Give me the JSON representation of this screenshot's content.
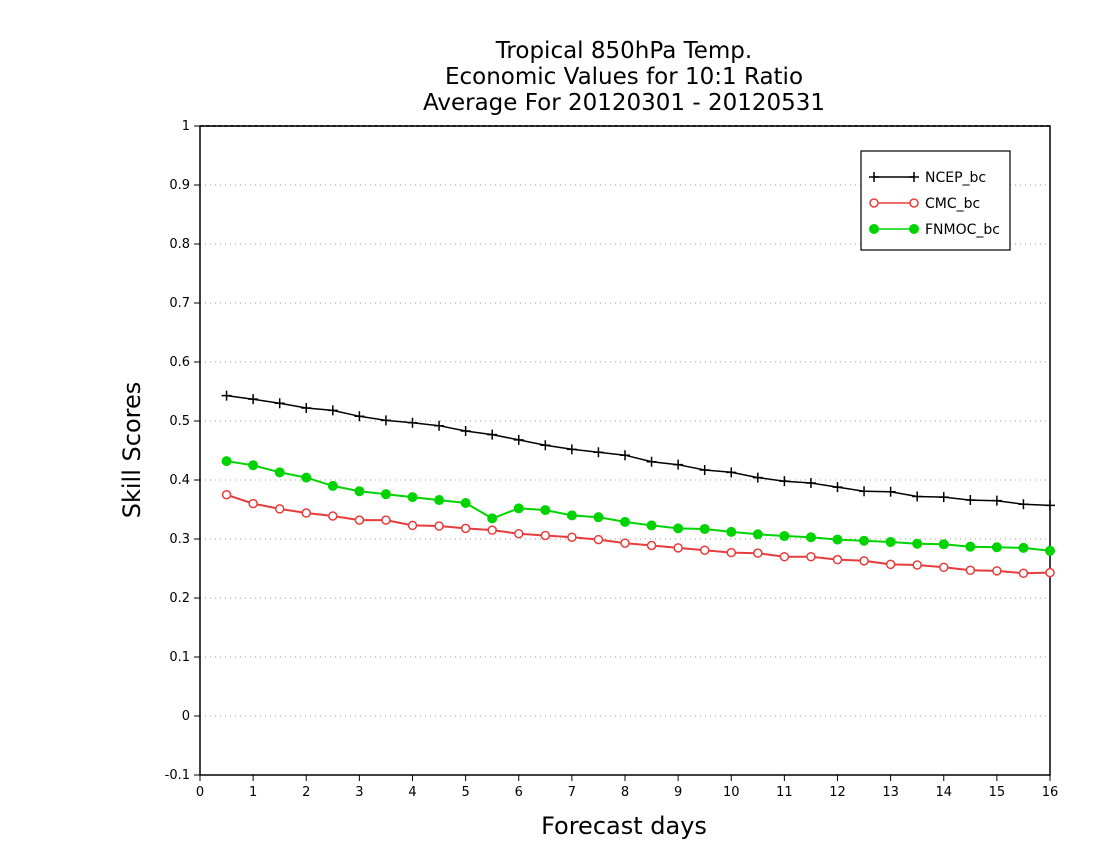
{
  "colors": {
    "background": "#ffffff",
    "grid": "#9a9a9a",
    "series": [
      "#000000",
      "#e83c3c",
      "#00d400"
    ]
  },
  "chart_data": {
    "type": "line",
    "title": [
      "Tropical 850hPa Temp.",
      "Economic Values for 10:1 Ratio",
      "Average For 20120301 - 20120531"
    ],
    "xlabel": "Forecast days",
    "ylabel": "Skill Scores",
    "xlim": [
      0,
      16
    ],
    "ylim": [
      -0.1,
      1
    ],
    "xticks": [
      0,
      1,
      2,
      3,
      4,
      5,
      6,
      7,
      8,
      9,
      10,
      11,
      12,
      13,
      14,
      15,
      16
    ],
    "yticks": [
      -0.1,
      0,
      0.1,
      0.2,
      0.3,
      0.4,
      0.5,
      0.6,
      0.7,
      0.8,
      0.9,
      1
    ],
    "ytick_labels": [
      "-0.1",
      "0",
      "0.1",
      "0.2",
      "0.3",
      "0.4",
      "0.5",
      "0.6",
      "0.7",
      "0.8",
      "0.9",
      "1"
    ],
    "grid": "horizontal-dotted",
    "legend_position": "top-right",
    "x": [
      0.5,
      1,
      1.5,
      2,
      2.5,
      3,
      3.5,
      4,
      4.5,
      5,
      5.5,
      6,
      6.5,
      7,
      7.5,
      8,
      8.5,
      9,
      9.5,
      10,
      10.5,
      11,
      11.5,
      12,
      12.5,
      13,
      13.5,
      14,
      14.5,
      15,
      15.5,
      16
    ],
    "series": [
      {
        "name": "NCEP_bc",
        "marker": "plus",
        "values": [
          0.543,
          0.537,
          0.53,
          0.522,
          0.518,
          0.508,
          0.501,
          0.497,
          0.492,
          0.483,
          0.477,
          0.468,
          0.459,
          0.452,
          0.447,
          0.442,
          0.431,
          0.426,
          0.417,
          0.413,
          0.404,
          0.398,
          0.395,
          0.388,
          0.381,
          0.38,
          0.372,
          0.371,
          0.366,
          0.365,
          0.359,
          0.357
        ]
      },
      {
        "name": "CMC_bc",
        "marker": "open-circle",
        "values": [
          0.375,
          0.36,
          0.351,
          0.344,
          0.339,
          0.332,
          0.332,
          0.323,
          0.322,
          0.318,
          0.315,
          0.309,
          0.306,
          0.303,
          0.299,
          0.293,
          0.289,
          0.285,
          0.281,
          0.277,
          0.276,
          0.27,
          0.27,
          0.265,
          0.263,
          0.257,
          0.256,
          0.252,
          0.247,
          0.246,
          0.242,
          0.243
        ]
      },
      {
        "name": "FNMOC_bc",
        "marker": "filled-circle",
        "values": [
          0.432,
          0.425,
          0.413,
          0.404,
          0.39,
          0.381,
          0.376,
          0.371,
          0.366,
          0.361,
          0.335,
          0.352,
          0.349,
          0.34,
          0.337,
          0.329,
          0.323,
          0.318,
          0.317,
          0.312,
          0.308,
          0.305,
          0.303,
          0.299,
          0.297,
          0.295,
          0.292,
          0.291,
          0.287,
          0.286,
          0.285,
          0.28
        ]
      }
    ]
  }
}
